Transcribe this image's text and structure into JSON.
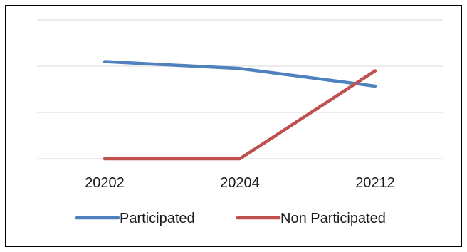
{
  "chart_data": {
    "type": "line",
    "title": "",
    "xlabel": "",
    "ylabel": "",
    "categories": [
      "20202",
      "20204",
      "20212"
    ],
    "ylim": [
      0,
      4
    ],
    "grid": true,
    "legend": "bottom",
    "series": [
      {
        "name": "Participated",
        "color": "#4f81bd",
        "values": [
          2.1,
          1.95,
          1.57
        ]
      },
      {
        "name": "Non Participated",
        "color": "#c0504d",
        "values": [
          0,
          0,
          1.9
        ]
      }
    ]
  }
}
